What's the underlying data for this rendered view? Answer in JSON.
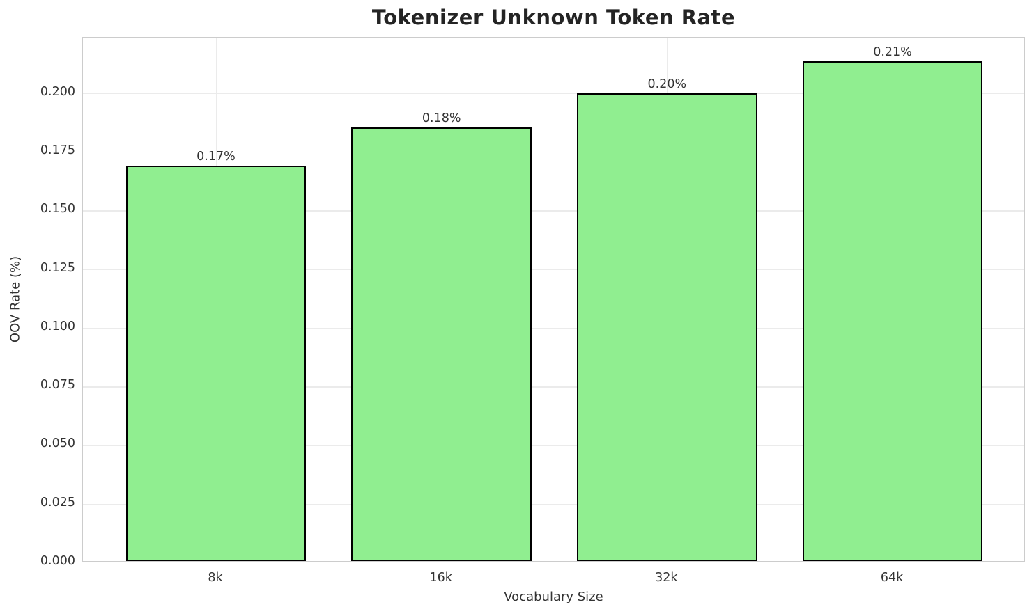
{
  "chart_data": {
    "type": "bar",
    "title": "Tokenizer Unknown Token Rate",
    "xlabel": "Vocabulary Size",
    "ylabel": "OOV Rate (%)",
    "categories": [
      "8k",
      "16k",
      "32k",
      "64k"
    ],
    "values": [
      0.1685,
      0.1848,
      0.1994,
      0.213
    ],
    "bar_labels": [
      "0.17%",
      "0.18%",
      "0.20%",
      "0.21%"
    ],
    "ylim": [
      0,
      0.2237
    ],
    "yticks": [
      0.0,
      0.025,
      0.05,
      0.075,
      0.1,
      0.125,
      0.15,
      0.175,
      0.2
    ],
    "ytick_labels": [
      "0.000",
      "0.025",
      "0.050",
      "0.075",
      "0.100",
      "0.125",
      "0.150",
      "0.175",
      "0.200"
    ],
    "grid": true,
    "legend": "none",
    "bar_color": "#90EE90",
    "bar_edge_color": "#000000",
    "grid_color": "#ebebeb",
    "spine_color": "#cccccc",
    "text_color": "#333333",
    "title_color": "#242424"
  }
}
